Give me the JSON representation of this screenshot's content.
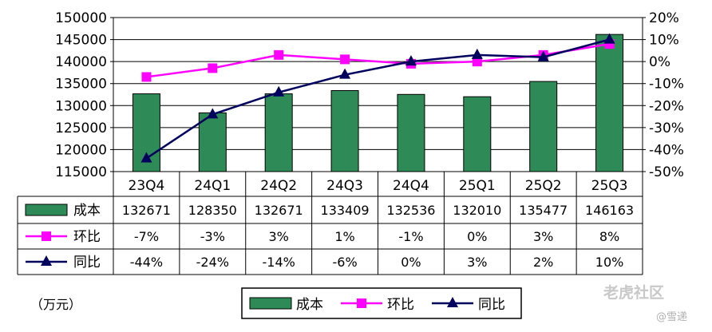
{
  "chart_data": {
    "type": "bar",
    "categories": [
      "23Q4",
      "24Q1",
      "24Q2",
      "24Q3",
      "24Q4",
      "25Q1",
      "25Q2",
      "25Q3"
    ],
    "left_axis": {
      "min": 115000,
      "max": 150000,
      "step": 5000,
      "ticks": [
        "115000",
        "120000",
        "125000",
        "130000",
        "135000",
        "140000",
        "145000",
        "150000"
      ]
    },
    "right_axis": {
      "min": -50,
      "max": 20,
      "step": 10,
      "ticks": [
        "-50%",
        "-40%",
        "-30%",
        "-20%",
        "-10%",
        "0%",
        "10%",
        "20%"
      ]
    },
    "series": [
      {
        "name": "成本",
        "kind": "bar",
        "axis": "left",
        "color": "#2e8b57",
        "values": [
          132671,
          128350,
          132671,
          133409,
          132536,
          132010,
          135477,
          146163
        ],
        "labels": [
          "132671",
          "128350",
          "132671",
          "133409",
          "132536",
          "132010",
          "135477",
          "146163"
        ]
      },
      {
        "name": "环比",
        "kind": "line",
        "axis": "right",
        "color": "#ff00ff",
        "marker": "square",
        "values": [
          -7,
          -3,
          3,
          1,
          -1,
          0,
          3,
          8
        ],
        "labels": [
          "-7%",
          "-3%",
          "3%",
          "1%",
          "-1%",
          "0%",
          "3%",
          "8%"
        ]
      },
      {
        "name": "同比",
        "kind": "line",
        "axis": "right",
        "color": "#00005e",
        "marker": "triangle",
        "values": [
          -44,
          -24,
          -14,
          -6,
          0,
          3,
          2,
          10
        ],
        "labels": [
          "-44%",
          "-24%",
          "-14%",
          "-6%",
          "0%",
          "3%",
          "2%",
          "10%"
        ]
      }
    ],
    "unit_label": "（万元）",
    "grid": true,
    "legend_placement": "bottom"
  },
  "watermark": {
    "brand": "老虎社区",
    "author": "@雪递"
  }
}
